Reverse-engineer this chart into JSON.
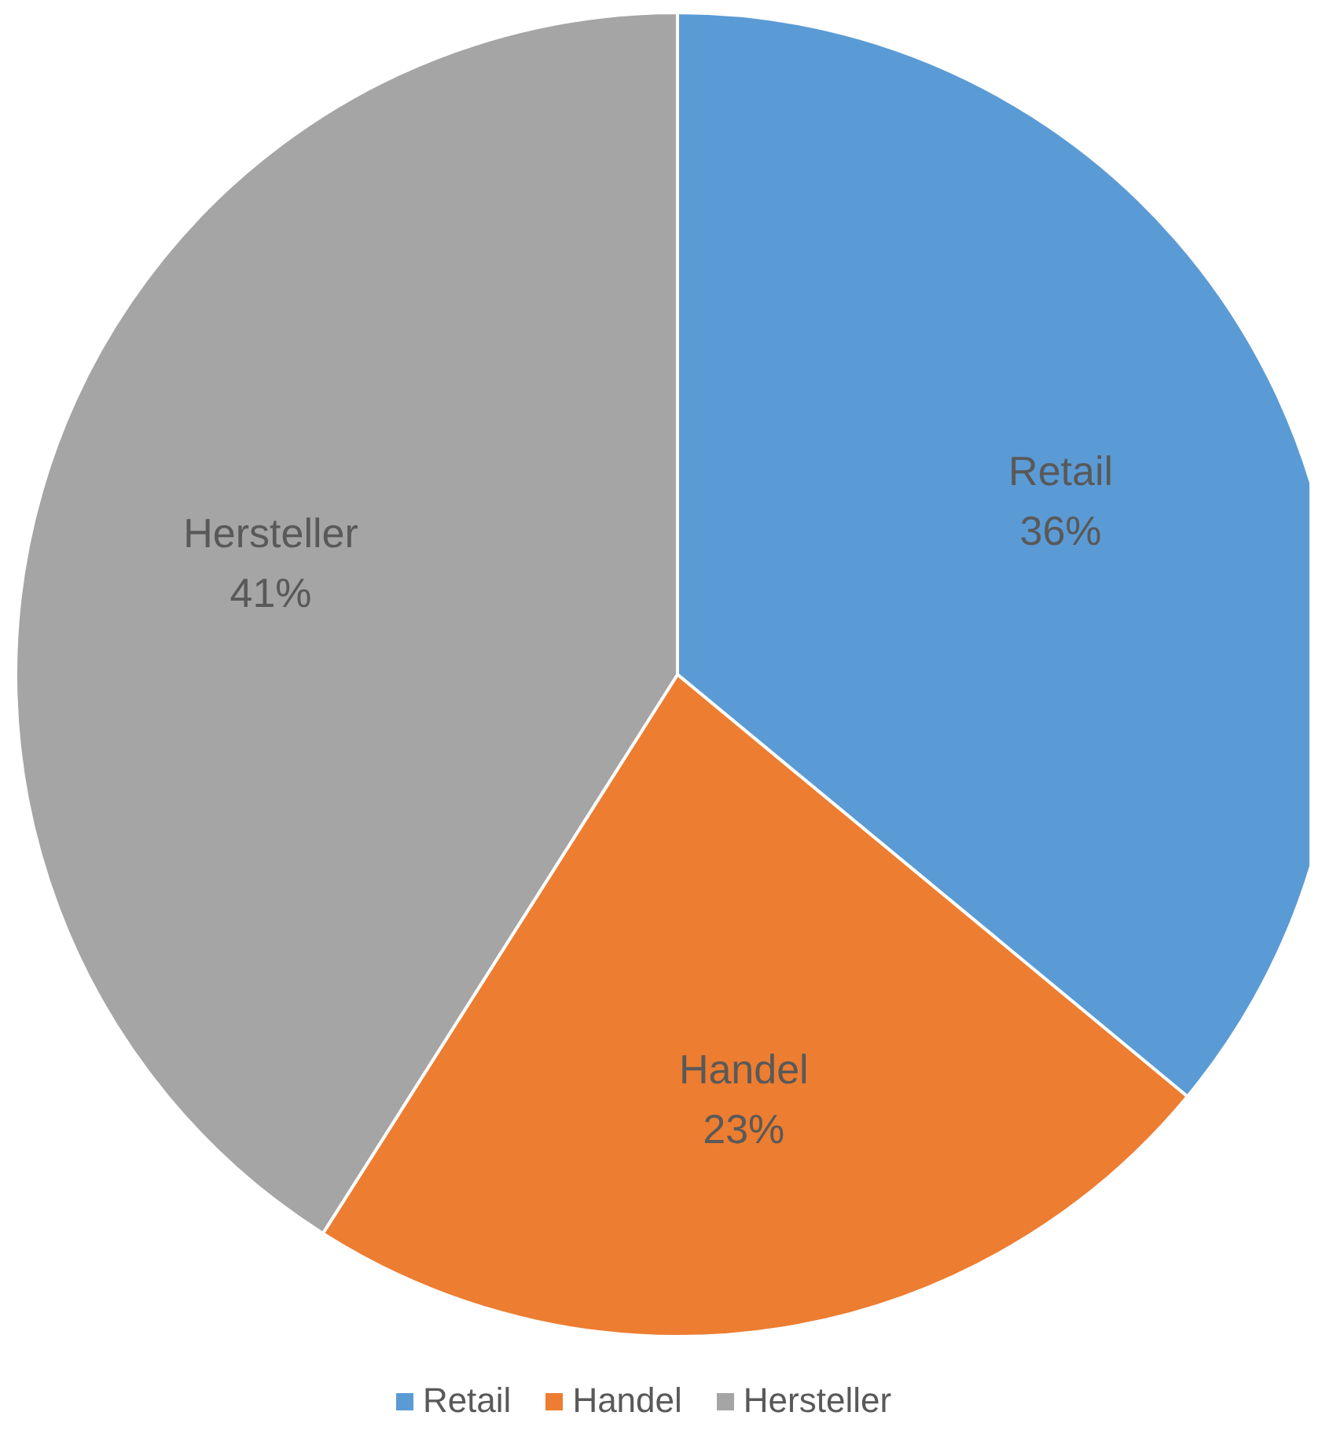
{
  "chart_data": {
    "type": "pie",
    "categories": [
      "Retail",
      "Handel",
      "Hersteller"
    ],
    "values": [
      36,
      23,
      41
    ],
    "colors": [
      "#5b9bd5",
      "#ed7d31",
      "#a5a5a5"
    ],
    "value_labels": [
      "36%",
      "23%",
      "41%"
    ],
    "legend": "bottom"
  }
}
